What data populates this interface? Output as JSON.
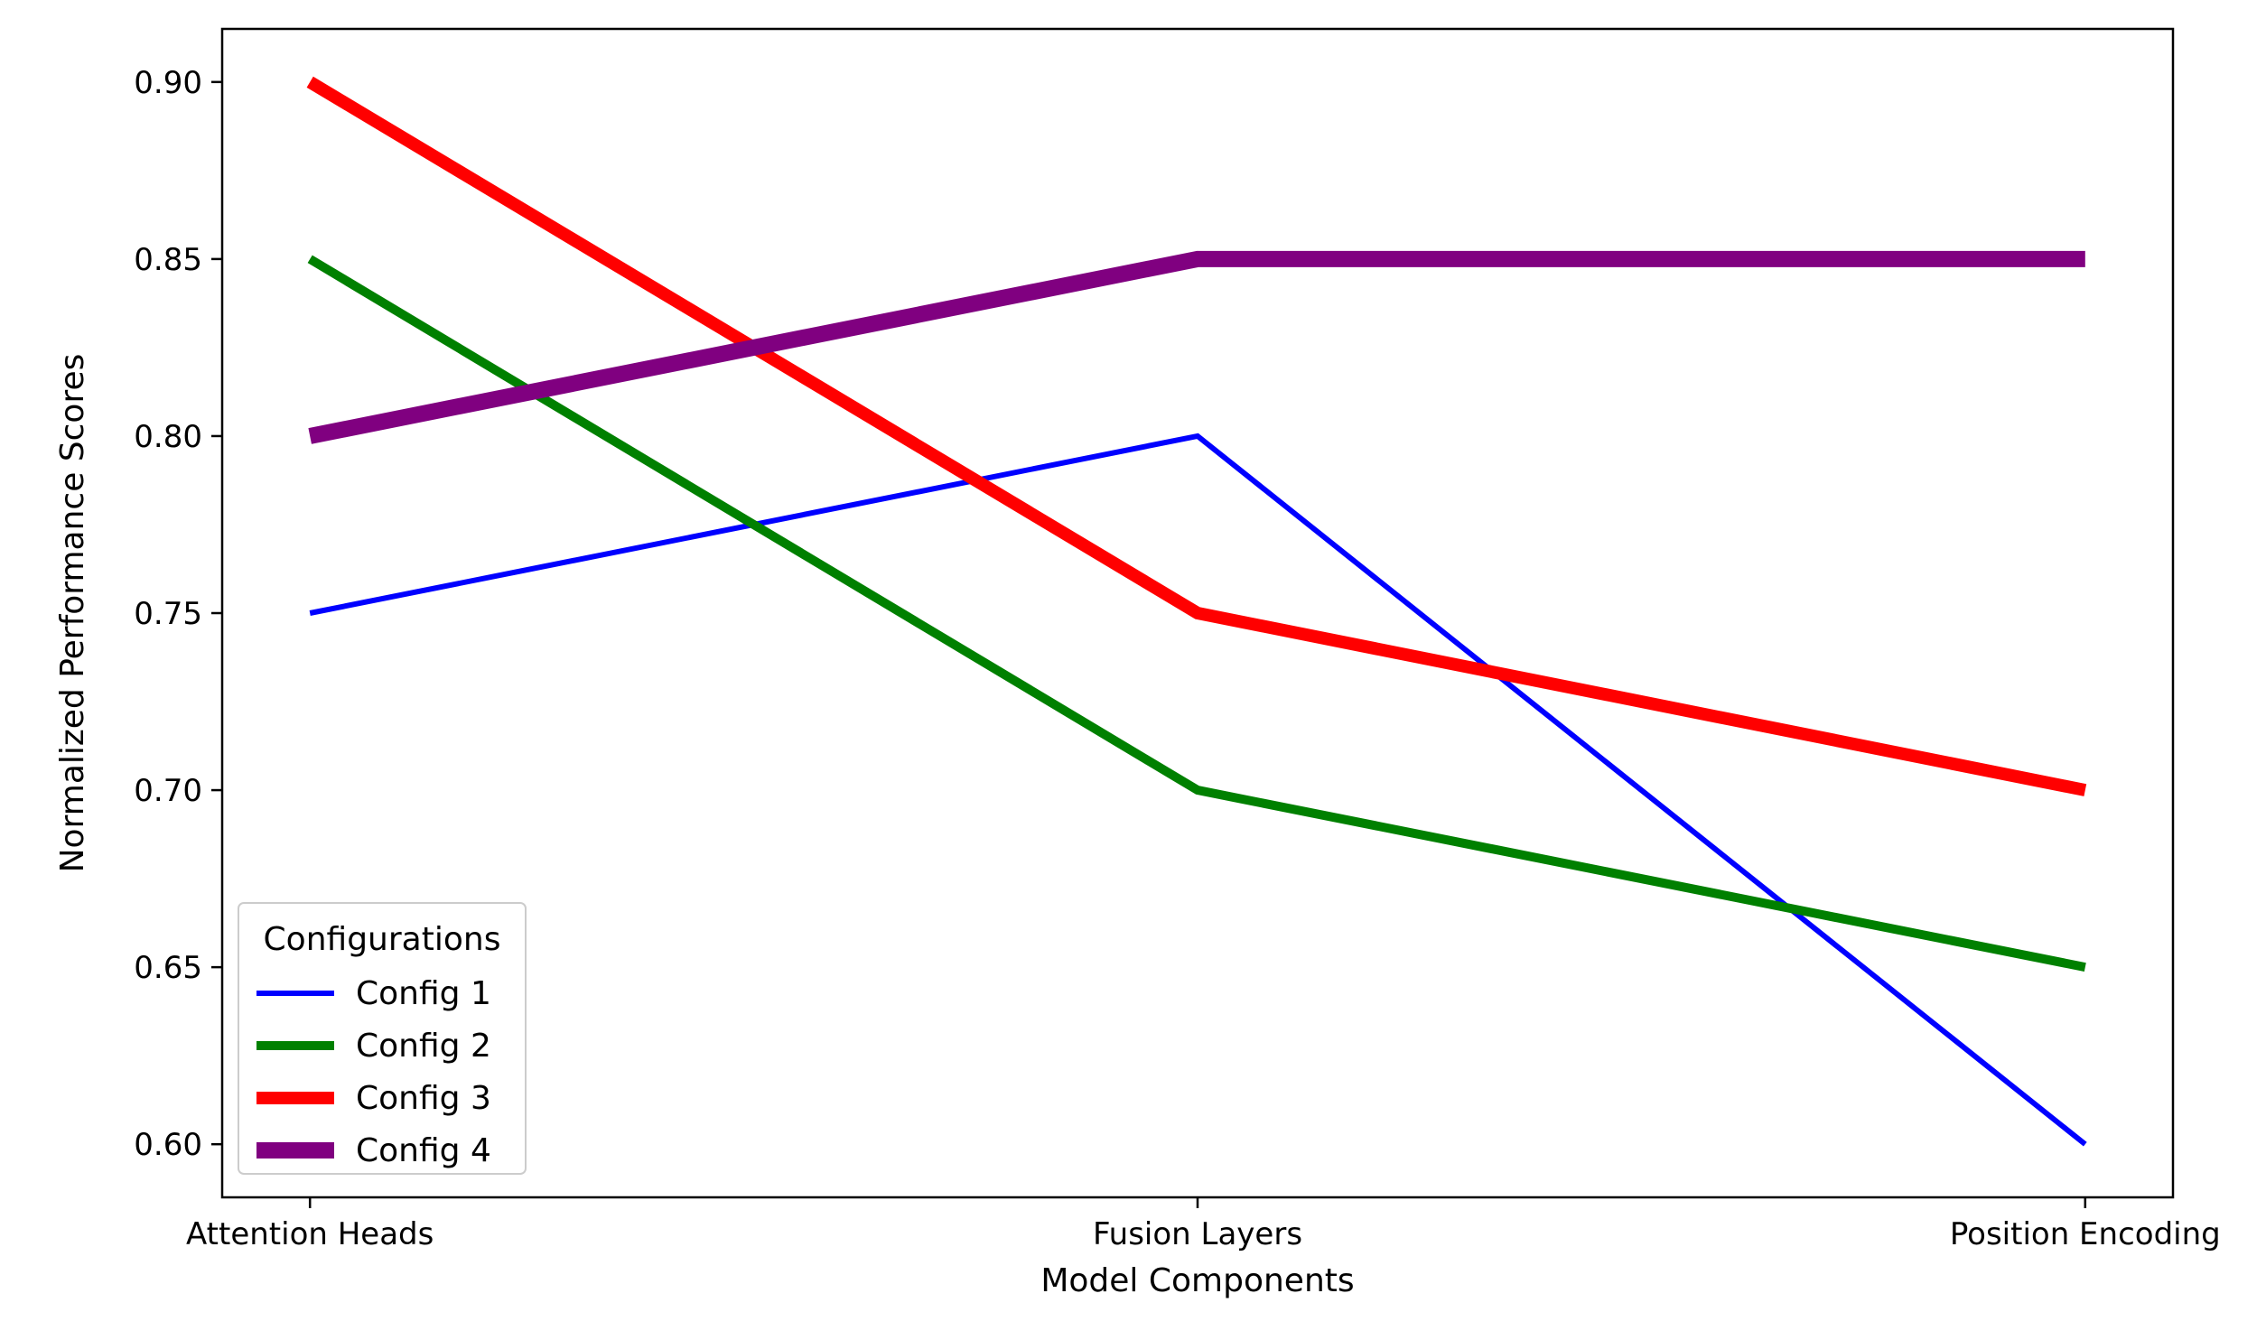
{
  "chart_data": {
    "type": "line",
    "categories": [
      "Attention Heads",
      "Fusion Layers",
      "Position Encoding"
    ],
    "series": [
      {
        "name": "Config 1",
        "values": [
          0.75,
          0.8,
          0.6
        ],
        "color": "#0000ff",
        "line_width": 1.5
      },
      {
        "name": "Config 2",
        "values": [
          0.85,
          0.7,
          0.65
        ],
        "color": "#008000",
        "line_width": 2.5
      },
      {
        "name": "Config 3",
        "values": [
          0.9,
          0.75,
          0.7
        ],
        "color": "#ff0000",
        "line_width": 3.5
      },
      {
        "name": "Config 4",
        "values": [
          0.8,
          0.85,
          0.85
        ],
        "color": "#800080",
        "line_width": 4.5
      }
    ],
    "title": "",
    "xlabel": "Model Components",
    "ylabel": "Normalized Performance Scores",
    "ylim": [
      0.585,
      0.915
    ],
    "yticks": [
      0.6,
      0.65,
      0.7,
      0.75,
      0.8,
      0.85,
      0.9
    ],
    "ytick_labels": [
      "0.60",
      "0.65",
      "0.70",
      "0.75",
      "0.80",
      "0.85",
      "0.90"
    ],
    "grid": false,
    "legend": {
      "title": "Configurations",
      "placement": "lower-left"
    }
  }
}
